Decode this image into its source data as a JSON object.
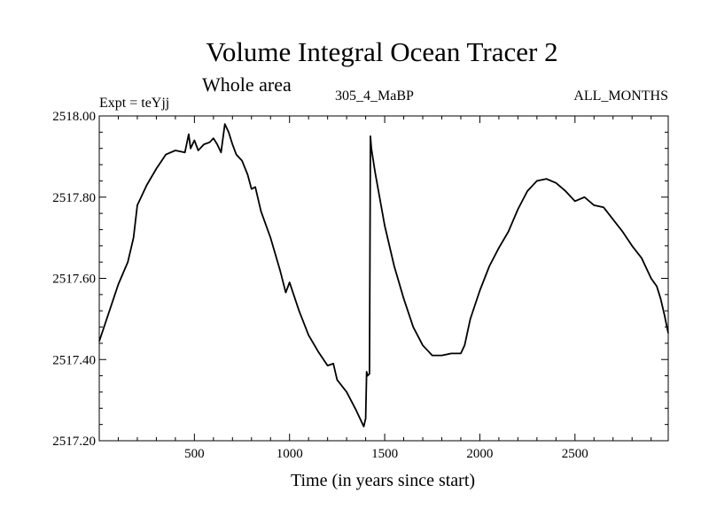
{
  "header": {
    "title": "Volume Integral Ocean Tracer 2",
    "subtitle": "Whole area",
    "expt_label": "Expt = teYjj",
    "run_label": "305_4_MaBP",
    "months_label": "ALL_MONTHS"
  },
  "chart_data": {
    "type": "line",
    "title": "Volume Integral Ocean Tracer 2",
    "subtitle": "Whole area",
    "xlabel": "Time (in years since start)",
    "ylabel": "",
    "xlim": [
      0,
      2990
    ],
    "ylim": [
      2517.2,
      2518.0
    ],
    "x_ticks": [
      500,
      1000,
      1500,
      2000,
      2500
    ],
    "x_tick_labels": [
      "500",
      "1000",
      "1500",
      "2000",
      "2500"
    ],
    "y_ticks": [
      2517.2,
      2517.4,
      2517.6,
      2517.8,
      2518.0
    ],
    "y_tick_labels": [
      "2517.20",
      "2517.40",
      "2517.60",
      "2517.80",
      "2518.00"
    ],
    "grid": false,
    "series": [
      {
        "name": "Volume Integral Ocean Tracer 2",
        "color": "#000000",
        "x": [
          0,
          50,
          100,
          150,
          180,
          200,
          250,
          300,
          350,
          400,
          450,
          470,
          480,
          500,
          520,
          550,
          580,
          600,
          620,
          640,
          660,
          680,
          700,
          720,
          750,
          780,
          800,
          820,
          850,
          900,
          950,
          980,
          1000,
          1050,
          1100,
          1150,
          1200,
          1230,
          1250,
          1300,
          1350,
          1390,
          1400,
          1405,
          1410,
          1420,
          1425,
          1430,
          1450,
          1500,
          1550,
          1600,
          1650,
          1700,
          1750,
          1800,
          1850,
          1900,
          1920,
          1950,
          2000,
          2050,
          2100,
          2150,
          2200,
          2250,
          2300,
          2350,
          2400,
          2450,
          2500,
          2550,
          2600,
          2650,
          2700,
          2750,
          2800,
          2850,
          2900,
          2930,
          2950,
          2970,
          2990
        ],
        "y": [
          2517.445,
          2517.515,
          2517.585,
          2517.64,
          2517.7,
          2517.78,
          2517.83,
          2517.87,
          2517.905,
          2517.915,
          2517.91,
          2517.955,
          2517.92,
          2517.94,
          2517.915,
          2517.93,
          2517.935,
          2517.945,
          2517.93,
          2517.91,
          2517.98,
          2517.96,
          2517.93,
          2517.905,
          2517.89,
          2517.855,
          2517.82,
          2517.825,
          2517.765,
          2517.7,
          2517.62,
          2517.565,
          2517.59,
          2517.52,
          2517.46,
          2517.42,
          2517.385,
          2517.39,
          2517.35,
          2517.32,
          2517.275,
          2517.235,
          2517.255,
          2517.37,
          2517.36,
          2517.365,
          2517.95,
          2517.92,
          2517.86,
          2517.73,
          2517.63,
          2517.55,
          2517.48,
          2517.435,
          2517.41,
          2517.41,
          2517.415,
          2517.415,
          2517.435,
          2517.5,
          2517.57,
          2517.63,
          2517.675,
          2517.715,
          2517.77,
          2517.815,
          2517.84,
          2517.845,
          2517.835,
          2517.815,
          2517.79,
          2517.8,
          2517.78,
          2517.775,
          2517.745,
          2517.715,
          2517.68,
          2517.65,
          2517.6,
          2517.58,
          2517.55,
          2517.51,
          2517.465
        ]
      }
    ]
  }
}
